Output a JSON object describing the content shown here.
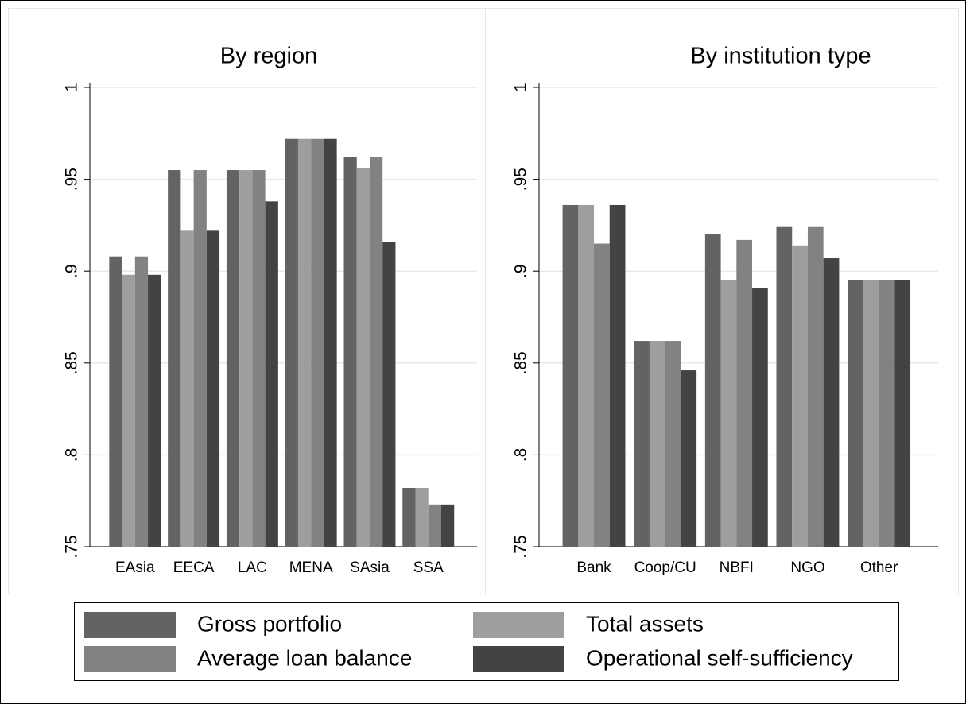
{
  "chart_data": [
    {
      "type": "bar",
      "title": "By region",
      "categories": [
        "EAsia",
        "EECA",
        "LAC",
        "MENA",
        "SAsia",
        "SSA"
      ],
      "series": [
        {
          "name": "Gross portfolio",
          "color": "#636363",
          "values": [
            0.908,
            0.955,
            0.955,
            0.972,
            0.962,
            0.782
          ]
        },
        {
          "name": "Total assets",
          "color": "#9e9e9e",
          "values": [
            0.898,
            0.922,
            0.955,
            0.972,
            0.956,
            0.782
          ]
        },
        {
          "name": "Average loan balance",
          "color": "#828282",
          "values": [
            0.908,
            0.955,
            0.955,
            0.972,
            0.962,
            0.773
          ]
        },
        {
          "name": "Operational self-sufficiency",
          "color": "#434343",
          "values": [
            0.898,
            0.922,
            0.938,
            0.972,
            0.916,
            0.773
          ]
        }
      ],
      "ylim": [
        0.75,
        1
      ],
      "yticks": [
        {
          "value": 0.75,
          "label": ".75"
        },
        {
          "value": 0.8,
          "label": ".8"
        },
        {
          "value": 0.85,
          "label": ".85"
        },
        {
          "value": 0.9,
          "label": ".9"
        },
        {
          "value": 0.95,
          "label": ".95"
        },
        1
      ],
      "grid": true
    },
    {
      "type": "bar",
      "title": "By institution type",
      "categories": [
        "Bank",
        "Coop/CU",
        "NBFI",
        "NGO",
        "Other"
      ],
      "series": [
        {
          "color": "#636363",
          "values": [
            0.936,
            0.862,
            0.92,
            0.924,
            0.895
          ]
        },
        {
          "color": "#9e9e9e",
          "values": [
            0.936,
            0.862,
            0.895,
            0.914,
            0.895
          ]
        },
        {
          "color": "#828282",
          "values": [
            0.915,
            0.862,
            0.917,
            0.924,
            0.895
          ]
        },
        {
          "color": "#434343",
          "values": [
            0.936,
            0.846,
            0.891,
            0.907,
            0.895
          ]
        }
      ],
      "ylim": [
        0.75,
        1
      ],
      "yticks": [
        {
          "value": 0.75,
          "label": ".75"
        },
        {
          "value": 0.8,
          "label": ".8"
        },
        {
          "value": 0.85,
          "label": ".85"
        },
        {
          "value": 0.9,
          "label": ".9"
        },
        {
          "value": 0.95,
          "label": ".95"
        },
        1
      ],
      "grid": true
    }
  ]
}
